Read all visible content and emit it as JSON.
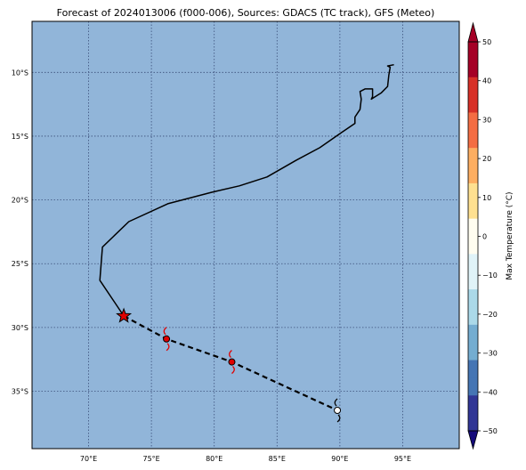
{
  "title": "Forecast of 2024013006 (f000-006), Sources: GDACS (TC track), GFS (Meteo)",
  "map": {
    "lon_range": [
      65.5,
      99.5
    ],
    "lat_range": [
      -39.5,
      -6.0
    ],
    "ocean_color": "#91b5d9",
    "grid_color": "#3b4f7a",
    "lon_ticks": [
      70,
      75,
      80,
      85,
      90,
      95
    ],
    "lon_tick_labels": [
      "70°E",
      "75°E",
      "80°E",
      "85°E",
      "90°E",
      "95°E"
    ],
    "lat_ticks": [
      -10,
      -15,
      -20,
      -25,
      -30,
      -35
    ],
    "lat_tick_labels": [
      "10°S",
      "15°S",
      "20°S",
      "25°S",
      "30°S",
      "35°S"
    ]
  },
  "track": {
    "observed": [
      [
        94.3,
        -9.4
      ],
      [
        93.8,
        -9.5
      ],
      [
        94.0,
        -9.6
      ],
      [
        93.9,
        -10.2
      ],
      [
        93.8,
        -11.1
      ],
      [
        93.3,
        -11.6
      ],
      [
        92.5,
        -12.1
      ],
      [
        92.6,
        -11.9
      ],
      [
        92.6,
        -11.3
      ],
      [
        92.0,
        -11.3
      ],
      [
        91.6,
        -11.5
      ],
      [
        91.7,
        -12.1
      ],
      [
        91.6,
        -12.9
      ],
      [
        91.2,
        -13.5
      ],
      [
        91.2,
        -14.0
      ],
      [
        90.0,
        -14.8
      ],
      [
        88.4,
        -15.9
      ],
      [
        86.5,
        -16.9
      ],
      [
        84.2,
        -18.2
      ],
      [
        82.0,
        -18.9
      ],
      [
        79.8,
        -19.4
      ],
      [
        76.3,
        -20.3
      ],
      [
        73.2,
        -21.7
      ],
      [
        71.1,
        -23.7
      ],
      [
        70.9,
        -26.3
      ],
      [
        72.8,
        -29.1
      ]
    ],
    "forecast": [
      [
        72.8,
        -29.1
      ],
      [
        76.2,
        -30.9
      ],
      [
        81.4,
        -32.7
      ],
      [
        89.8,
        -36.5
      ]
    ],
    "current_position": [
      72.8,
      -29.1
    ],
    "storm_points": [
      {
        "lon": 76.2,
        "lat": -30.9,
        "color": "#e00000",
        "icon": "tropical-storm-icon"
      },
      {
        "lon": 81.4,
        "lat": -32.7,
        "color": "#e00000",
        "icon": "tropical-storm-icon"
      },
      {
        "lon": 89.8,
        "lat": -36.5,
        "color": "#ffffff",
        "icon": "low-pressure-icon"
      }
    ],
    "current_marker_color": "#e00000"
  },
  "colorbar": {
    "label": "Max Temperature (°C)",
    "ticks": [
      50,
      40,
      30,
      20,
      10,
      0,
      -10,
      -20,
      -30,
      -40,
      -50
    ],
    "tick_labels": [
      "50",
      "40",
      "30",
      "20",
      "10",
      "0",
      "−10",
      "−20",
      "−30",
      "−40",
      "−50"
    ],
    "colors_top_to_bottom": [
      "#a50026",
      "#a50026",
      "#d73027",
      "#d73027",
      "#f46d43",
      "#f46d43",
      "#fdae61",
      "#fdae61",
      "#fee090",
      "#fee090",
      "#fffdf0",
      "#fffdf0",
      "#e0f3f8",
      "#e0f3f8",
      "#abd9e9",
      "#abd9e9",
      "#74add1",
      "#74add1",
      "#4575b4",
      "#4575b4",
      "#313695",
      "#313695"
    ],
    "extend_top_color": "#a50026",
    "extend_bottom_color": "#140a7a"
  }
}
